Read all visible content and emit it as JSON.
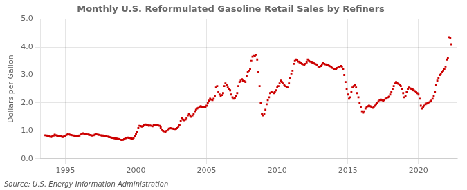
{
  "chart_data": {
    "type": "scatter",
    "title": "Monthly U.S. Reformulated Gasoline Retail Sales by Refiners",
    "y_label": "Dollars per Gallon",
    "annotations": [
      "Source: U.S. Energy Information Administration"
    ],
    "color": "#cc0000",
    "marker": "square",
    "grid": true,
    "xlim": [
      1993.25,
      2022.75
    ],
    "ylim": [
      0.0,
      5.0
    ],
    "xticks": [
      1995,
      2000,
      2005,
      2010,
      2015,
      2020
    ],
    "yticks": [
      {
        "value": 0.0,
        "label": "0.0"
      },
      {
        "value": 1.0,
        "label": "1.0"
      },
      {
        "value": 2.0,
        "label": "2.0"
      },
      {
        "value": 3.0,
        "label": "3.0"
      },
      {
        "value": 4.0,
        "label": "4.0"
      },
      {
        "value": 5.0,
        "label": "5.0"
      }
    ],
    "x": [
      1993.583,
      1993.667,
      1993.75,
      1993.833,
      1993.917,
      1994.0,
      1994.083,
      1994.167,
      1994.25,
      1994.333,
      1994.417,
      1994.5,
      1994.583,
      1994.667,
      1994.75,
      1994.833,
      1994.917,
      1995.0,
      1995.083,
      1995.167,
      1995.25,
      1995.333,
      1995.417,
      1995.5,
      1995.583,
      1995.667,
      1995.75,
      1995.833,
      1995.917,
      1996.0,
      1996.083,
      1996.167,
      1996.25,
      1996.333,
      1996.417,
      1996.5,
      1996.583,
      1996.667,
      1996.75,
      1996.833,
      1996.917,
      1997.0,
      1997.083,
      1997.167,
      1997.25,
      1997.333,
      1997.417,
      1997.5,
      1997.583,
      1997.667,
      1997.75,
      1997.833,
      1997.917,
      1998.0,
      1998.083,
      1998.167,
      1998.25,
      1998.333,
      1998.417,
      1998.5,
      1998.583,
      1998.667,
      1998.75,
      1998.833,
      1998.917,
      1999.0,
      1999.083,
      1999.167,
      1999.25,
      1999.333,
      1999.417,
      1999.5,
      1999.583,
      1999.667,
      1999.75,
      1999.833,
      1999.917,
      2000.0,
      2000.083,
      2000.167,
      2000.25,
      2000.333,
      2000.417,
      2000.5,
      2000.583,
      2000.667,
      2000.75,
      2000.833,
      2000.917,
      2001.0,
      2001.083,
      2001.167,
      2001.25,
      2001.333,
      2001.417,
      2001.5,
      2001.583,
      2001.667,
      2001.75,
      2001.833,
      2001.917,
      2002.0,
      2002.083,
      2002.167,
      2002.25,
      2002.333,
      2002.417,
      2002.5,
      2002.583,
      2002.667,
      2002.75,
      2002.833,
      2002.917,
      2003.0,
      2003.083,
      2003.167,
      2003.25,
      2003.333,
      2003.417,
      2003.5,
      2003.583,
      2003.667,
      2003.75,
      2003.833,
      2003.917,
      2004.0,
      2004.083,
      2004.167,
      2004.25,
      2004.333,
      2004.417,
      2004.5,
      2004.583,
      2004.667,
      2004.75,
      2004.833,
      2004.917,
      2005.0,
      2005.083,
      2005.167,
      2005.25,
      2005.333,
      2005.417,
      2005.5,
      2005.583,
      2005.667,
      2005.75,
      2005.833,
      2005.917,
      2006.0,
      2006.083,
      2006.167,
      2006.25,
      2006.333,
      2006.417,
      2006.5,
      2006.583,
      2006.667,
      2006.75,
      2006.833,
      2006.917,
      2007.0,
      2007.083,
      2007.167,
      2007.25,
      2007.333,
      2007.417,
      2007.5,
      2007.583,
      2007.667,
      2007.75,
      2007.833,
      2007.917,
      2008.0,
      2008.083,
      2008.167,
      2008.25,
      2008.333,
      2008.417,
      2008.5,
      2008.583,
      2008.667,
      2008.75,
      2008.833,
      2008.917,
      2009.0,
      2009.083,
      2009.167,
      2009.25,
      2009.333,
      2009.417,
      2009.5,
      2009.583,
      2009.667,
      2009.75,
      2009.833,
      2009.917,
      2010.0,
      2010.083,
      2010.167,
      2010.25,
      2010.333,
      2010.417,
      2010.5,
      2010.583,
      2010.667,
      2010.75,
      2010.833,
      2010.917,
      2011.0,
      2011.083,
      2011.167,
      2011.25,
      2011.333,
      2011.417,
      2011.5,
      2011.583,
      2011.667,
      2011.75,
      2011.833,
      2011.917,
      2012.0,
      2012.083,
      2012.167,
      2012.25,
      2012.333,
      2012.417,
      2012.5,
      2012.583,
      2012.667,
      2012.75,
      2012.833,
      2012.917,
      2013.0,
      2013.083,
      2013.167,
      2013.25,
      2013.333,
      2013.417,
      2013.5,
      2013.583,
      2013.667,
      2013.75,
      2013.833,
      2013.917,
      2014.0,
      2014.083,
      2014.167,
      2014.25,
      2014.333,
      2014.417,
      2014.5,
      2014.583,
      2014.667,
      2014.75,
      2014.833,
      2014.917,
      2015.0,
      2015.083,
      2015.167,
      2015.25,
      2015.333,
      2015.417,
      2015.5,
      2015.583,
      2015.667,
      2015.75,
      2015.833,
      2015.917,
      2016.0,
      2016.083,
      2016.167,
      2016.25,
      2016.333,
      2016.417,
      2016.5,
      2016.583,
      2016.667,
      2016.75,
      2016.833,
      2016.917,
      2017.0,
      2017.083,
      2017.167,
      2017.25,
      2017.333,
      2017.417,
      2017.5,
      2017.583,
      2017.667,
      2017.75,
      2017.833,
      2017.917,
      2018.0,
      2018.083,
      2018.167,
      2018.25,
      2018.333,
      2018.417,
      2018.5,
      2018.583,
      2018.667,
      2018.75,
      2018.833,
      2018.917,
      2019.0,
      2019.083,
      2019.167,
      2019.25,
      2019.333,
      2019.417,
      2019.5,
      2019.583,
      2019.667,
      2019.75,
      2019.833,
      2019.917,
      2020.0,
      2020.083,
      2020.167,
      2020.25,
      2020.333,
      2020.417,
      2020.5,
      2020.583,
      2020.667,
      2020.75,
      2020.833,
      2020.917,
      2021.0,
      2021.083,
      2021.167,
      2021.25,
      2021.333,
      2021.417,
      2021.5,
      2021.583,
      2021.667,
      2021.75,
      2021.833,
      2021.917,
      2022.0,
      2022.083,
      2022.167,
      2022.25,
      2022.333
    ],
    "values": [
      0.84,
      0.83,
      0.82,
      0.8,
      0.79,
      0.78,
      0.8,
      0.83,
      0.86,
      0.84,
      0.83,
      0.82,
      0.81,
      0.8,
      0.79,
      0.78,
      0.8,
      0.82,
      0.85,
      0.88,
      0.87,
      0.86,
      0.85,
      0.84,
      0.83,
      0.82,
      0.81,
      0.8,
      0.81,
      0.83,
      0.87,
      0.9,
      0.91,
      0.9,
      0.89,
      0.88,
      0.87,
      0.86,
      0.85,
      0.84,
      0.83,
      0.84,
      0.86,
      0.88,
      0.87,
      0.86,
      0.85,
      0.84,
      0.83,
      0.83,
      0.82,
      0.81,
      0.8,
      0.79,
      0.78,
      0.77,
      0.76,
      0.75,
      0.74,
      0.73,
      0.72,
      0.72,
      0.71,
      0.7,
      0.68,
      0.67,
      0.68,
      0.7,
      0.73,
      0.75,
      0.76,
      0.75,
      0.74,
      0.73,
      0.72,
      0.75,
      0.8,
      0.88,
      0.97,
      1.1,
      1.18,
      1.17,
      1.15,
      1.17,
      1.2,
      1.23,
      1.22,
      1.2,
      1.18,
      1.19,
      1.18,
      1.16,
      1.2,
      1.22,
      1.21,
      1.2,
      1.19,
      1.18,
      1.12,
      1.05,
      1.0,
      0.98,
      0.97,
      1.0,
      1.05,
      1.08,
      1.1,
      1.09,
      1.08,
      1.07,
      1.06,
      1.07,
      1.1,
      1.15,
      1.2,
      1.35,
      1.45,
      1.4,
      1.38,
      1.4,
      1.45,
      1.55,
      1.6,
      1.55,
      1.5,
      1.55,
      1.6,
      1.7,
      1.75,
      1.8,
      1.82,
      1.85,
      1.88,
      1.86,
      1.85,
      1.84,
      1.85,
      1.9,
      2.0,
      2.08,
      2.15,
      2.12,
      2.1,
      2.15,
      2.25,
      2.55,
      2.6,
      2.4,
      2.3,
      2.25,
      2.28,
      2.35,
      2.6,
      2.7,
      2.65,
      2.55,
      2.5,
      2.45,
      2.3,
      2.2,
      2.15,
      2.18,
      2.25,
      2.35,
      2.6,
      2.75,
      2.8,
      2.85,
      2.8,
      2.78,
      2.75,
      2.95,
      3.1,
      3.15,
      3.2,
      3.5,
      3.65,
      3.7,
      3.68,
      3.72,
      3.55,
      3.1,
      2.6,
      2.0,
      1.6,
      1.55,
      1.6,
      1.75,
      1.95,
      2.1,
      2.2,
      2.35,
      2.4,
      2.38,
      2.35,
      2.4,
      2.45,
      2.55,
      2.6,
      2.7,
      2.8,
      2.75,
      2.7,
      2.65,
      2.6,
      2.58,
      2.55,
      2.7,
      2.9,
      3.05,
      3.15,
      3.4,
      3.5,
      3.55,
      3.52,
      3.48,
      3.45,
      3.42,
      3.4,
      3.38,
      3.35,
      3.4,
      3.45,
      3.55,
      3.5,
      3.48,
      3.46,
      3.44,
      3.42,
      3.4,
      3.38,
      3.36,
      3.3,
      3.28,
      3.32,
      3.38,
      3.42,
      3.4,
      3.38,
      3.36,
      3.35,
      3.33,
      3.31,
      3.28,
      3.25,
      3.22,
      3.2,
      3.22,
      3.25,
      3.3,
      3.28,
      3.32,
      3.3,
      3.2,
      3.0,
      2.75,
      2.5,
      2.3,
      2.15,
      2.2,
      2.4,
      2.55,
      2.6,
      2.65,
      2.55,
      2.35,
      2.2,
      2.0,
      1.85,
      1.7,
      1.65,
      1.7,
      1.8,
      1.85,
      1.88,
      1.9,
      1.88,
      1.85,
      1.82,
      1.85,
      1.9,
      1.95,
      2.0,
      2.05,
      2.1,
      2.12,
      2.1,
      2.08,
      2.1,
      2.15,
      2.18,
      2.2,
      2.22,
      2.3,
      2.4,
      2.5,
      2.6,
      2.7,
      2.75,
      2.72,
      2.68,
      2.65,
      2.6,
      2.5,
      2.35,
      2.2,
      2.25,
      2.4,
      2.5,
      2.55,
      2.52,
      2.5,
      2.48,
      2.45,
      2.42,
      2.4,
      2.35,
      2.3,
      2.15,
      1.9,
      1.8,
      1.85,
      1.9,
      1.95,
      1.98,
      2.0,
      2.02,
      2.05,
      2.08,
      2.15,
      2.25,
      2.4,
      2.65,
      2.8,
      2.9,
      3.0,
      3.05,
      3.1,
      3.15,
      3.2,
      3.3,
      3.55,
      3.6,
      4.35,
      4.32,
      4.1
    ]
  }
}
